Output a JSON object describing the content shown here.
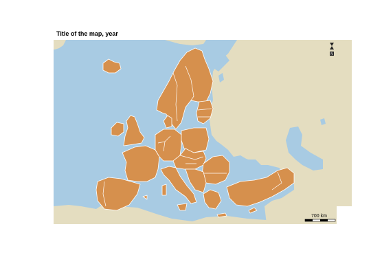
{
  "title": "Title of the map, year",
  "scale_bar": {
    "label": "700 km"
  },
  "north_arrow": {
    "letter": "N"
  },
  "colors": {
    "highlighted_countries": "#d6904d",
    "other_land": "#e4ddc0",
    "sea": "#a8cbe3",
    "borders": "#ffffff"
  },
  "icons": [
    "north-arrow-icon",
    "scale-bar-icon"
  ]
}
